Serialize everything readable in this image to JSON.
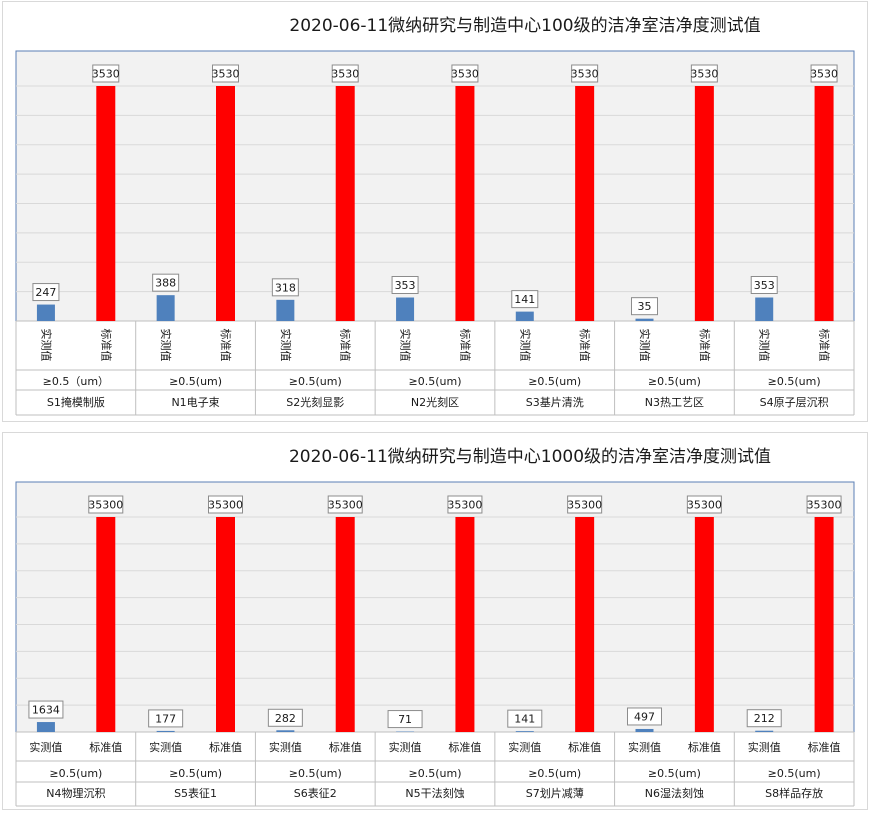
{
  "chart_data": [
    {
      "type": "bar",
      "title": "2020-06-11微纳研究与制造中心100级的洁净室洁净度测试值",
      "ylim": [
        0,
        3530
      ],
      "grid": true,
      "series_labels": [
        "实测值",
        "标准值"
      ],
      "colors": {
        "measured": "#4f81bd",
        "standard": "#ff0000"
      },
      "groups": [
        {
          "particle": "≥0.5（um）",
          "room": "S1掩模制版",
          "measured": 247,
          "standard": 3530
        },
        {
          "particle": "≥0.5(um)",
          "room": "N1电子束",
          "measured": 388,
          "standard": 3530
        },
        {
          "particle": "≥0.5(um)",
          "room": "S2光刻显影",
          "measured": 318,
          "standard": 3530
        },
        {
          "particle": "≥0.5(um)",
          "room": "N2光刻区",
          "measured": 353,
          "standard": 3530
        },
        {
          "particle": "≥0.5(um)",
          "room": "S3基片清洗",
          "measured": 141,
          "standard": 3530
        },
        {
          "particle": "≥0.5(um)",
          "room": "N3热工艺区",
          "measured": 35,
          "standard": 3530
        },
        {
          "particle": "≥0.5(um)",
          "room": "S4原子层沉积",
          "measured": 353,
          "standard": 3530
        }
      ]
    },
    {
      "type": "bar",
      "title": "2020-06-11微纳研究与制造中心1000级的洁净室洁净度测试值",
      "ylim": [
        0,
        35300
      ],
      "grid": true,
      "series_labels": [
        "实测值",
        "标准值"
      ],
      "colors": {
        "measured": "#4f81bd",
        "standard": "#ff0000"
      },
      "groups": [
        {
          "particle": "≥0.5(um)",
          "room": "N4物理沉积",
          "measured": 1634,
          "standard": 35300
        },
        {
          "particle": "≥0.5(um)",
          "room": "S5表征1",
          "measured": 177,
          "standard": 35300
        },
        {
          "particle": "≥0.5(um)",
          "room": "S6表征2",
          "measured": 282,
          "standard": 35300
        },
        {
          "particle": "≥0.5(um)",
          "room": "N5干法刻蚀",
          "measured": 71,
          "standard": 35300
        },
        {
          "particle": "≥0.5(um)",
          "room": "S7划片减薄",
          "measured": 141,
          "standard": 35300
        },
        {
          "particle": "≥0.5(um)",
          "room": "N6湿法刻蚀",
          "measured": 497,
          "standard": 35300
        },
        {
          "particle": "≥0.5(um)",
          "room": "S8样品存放",
          "measured": 212,
          "standard": 35300
        }
      ]
    }
  ]
}
